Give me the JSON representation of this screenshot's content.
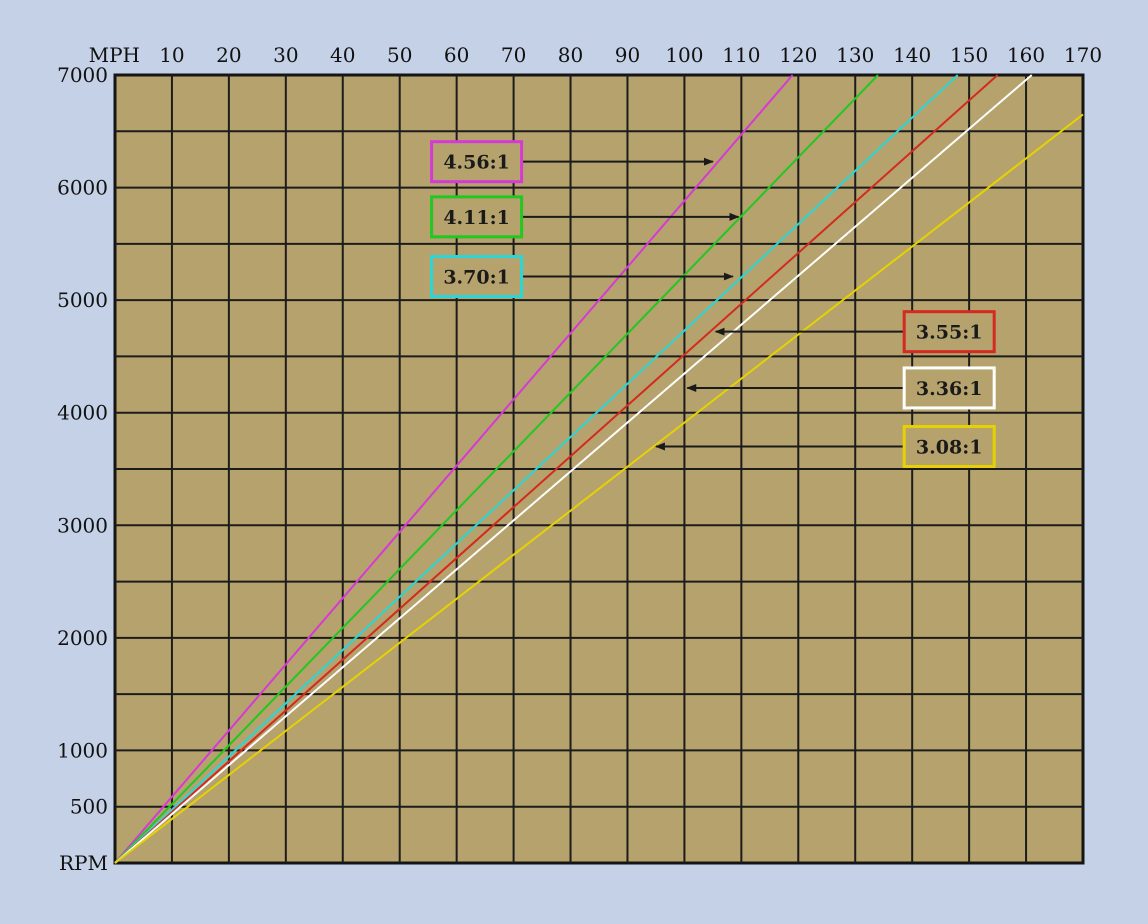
{
  "chart_data": {
    "type": "line",
    "xlabel": "MPH",
    "ylabel": "RPM",
    "x_ticks": [
      10,
      20,
      30,
      40,
      50,
      60,
      70,
      80,
      90,
      100,
      110,
      120,
      130,
      140,
      150,
      160,
      170
    ],
    "y_ticks": [
      500,
      1000,
      2000,
      3000,
      4000,
      5000,
      6000,
      7000
    ],
    "xlim": [
      0,
      170
    ],
    "ylim": [
      0,
      7000
    ],
    "grid": true,
    "series": [
      {
        "name": "4.56:1",
        "color": "#d63ad6",
        "x": [
          0,
          119
        ],
        "y": [
          0,
          7000
        ]
      },
      {
        "name": "4.11:1",
        "color": "#22c822",
        "x": [
          0,
          134
        ],
        "y": [
          0,
          7000
        ]
      },
      {
        "name": "3.70:1",
        "color": "#2ad6d6",
        "x": [
          0,
          148
        ],
        "y": [
          0,
          7000
        ]
      },
      {
        "name": "3.55:1",
        "color": "#d42a20",
        "x": [
          0,
          155
        ],
        "y": [
          0,
          7000
        ]
      },
      {
        "name": "3.36:1",
        "color": "#ffffff",
        "x": [
          0,
          161
        ],
        "y": [
          0,
          7000
        ]
      },
      {
        "name": "3.08:1",
        "color": "#e6d200",
        "x": [
          0,
          170
        ],
        "y": [
          0,
          6650
        ]
      }
    ],
    "annotations": [
      {
        "label": "4.56:1",
        "color": "#d63ad6",
        "label_x": 63.5,
        "label_y": 6230,
        "side": "left",
        "arrow_to": [
          105,
          6230
        ]
      },
      {
        "label": "4.11:1",
        "color": "#22c822",
        "label_x": 63.5,
        "label_y": 5740,
        "side": "left",
        "arrow_to": [
          109.5,
          5740
        ]
      },
      {
        "label": "3.70:1",
        "color": "#2ad6d6",
        "label_x": 63.5,
        "label_y": 5210,
        "side": "left",
        "arrow_to": [
          108.5,
          5210
        ]
      },
      {
        "label": "3.55:1",
        "color": "#d42a20",
        "label_x": 146.5,
        "label_y": 4720,
        "side": "right",
        "arrow_to": [
          105.5,
          4720
        ]
      },
      {
        "label": "3.36:1",
        "color": "#ffffff",
        "label_x": 146.5,
        "label_y": 4220,
        "side": "right",
        "arrow_to": [
          100.5,
          4220
        ]
      },
      {
        "label": "3.08:1",
        "color": "#e6d200",
        "label_x": 146.5,
        "label_y": 3700,
        "side": "right",
        "arrow_to": [
          95,
          3700
        ]
      }
    ]
  }
}
